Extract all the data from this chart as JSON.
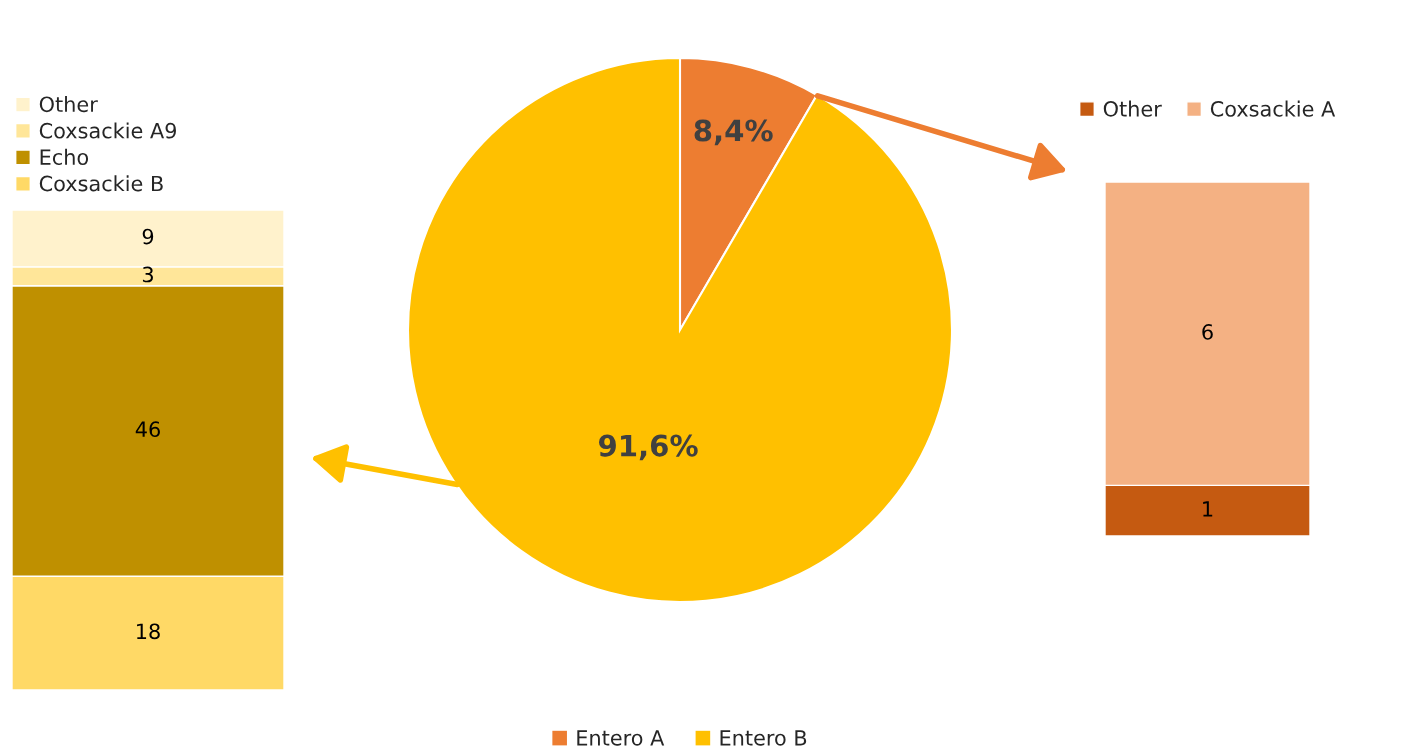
{
  "chart_data": [
    {
      "type": "bar",
      "stacked": true,
      "categories": [
        null
      ],
      "data_labels": true,
      "legend": "top",
      "ylim": [
        0,
        76
      ],
      "tick_labels": false,
      "series": [
        {
          "name": "Coxsackie B",
          "color": "#ffd966",
          "values": [
            18
          ]
        },
        {
          "name": "Echo",
          "color": "#bf9000",
          "values": [
            46
          ]
        },
        {
          "name": "Coxsackie A9",
          "color": "#ffe699",
          "values": [
            3
          ]
        },
        {
          "name": "Other",
          "color": "#fff2cc",
          "values": [
            9
          ]
        }
      ]
    },
    {
      "type": "pie",
      "categories": [
        "Entero A",
        "Entero B"
      ],
      "values": [
        8.4,
        91.6
      ],
      "colors": [
        "#ed7d31",
        "#ffc000"
      ],
      "value_labels": [
        "8,4%",
        "91,6%"
      ],
      "legend": "bottom"
    },
    {
      "type": "bar",
      "stacked": true,
      "categories": [
        null
      ],
      "data_labels": true,
      "legend": "top",
      "ylim": [
        0,
        7
      ],
      "tick_labels": false,
      "series": [
        {
          "name": "Other",
          "color": "#c55a11",
          "values": [
            1
          ]
        },
        {
          "name": "Coxsackie A",
          "color": "#f4b183",
          "values": [
            6
          ]
        }
      ]
    }
  ]
}
